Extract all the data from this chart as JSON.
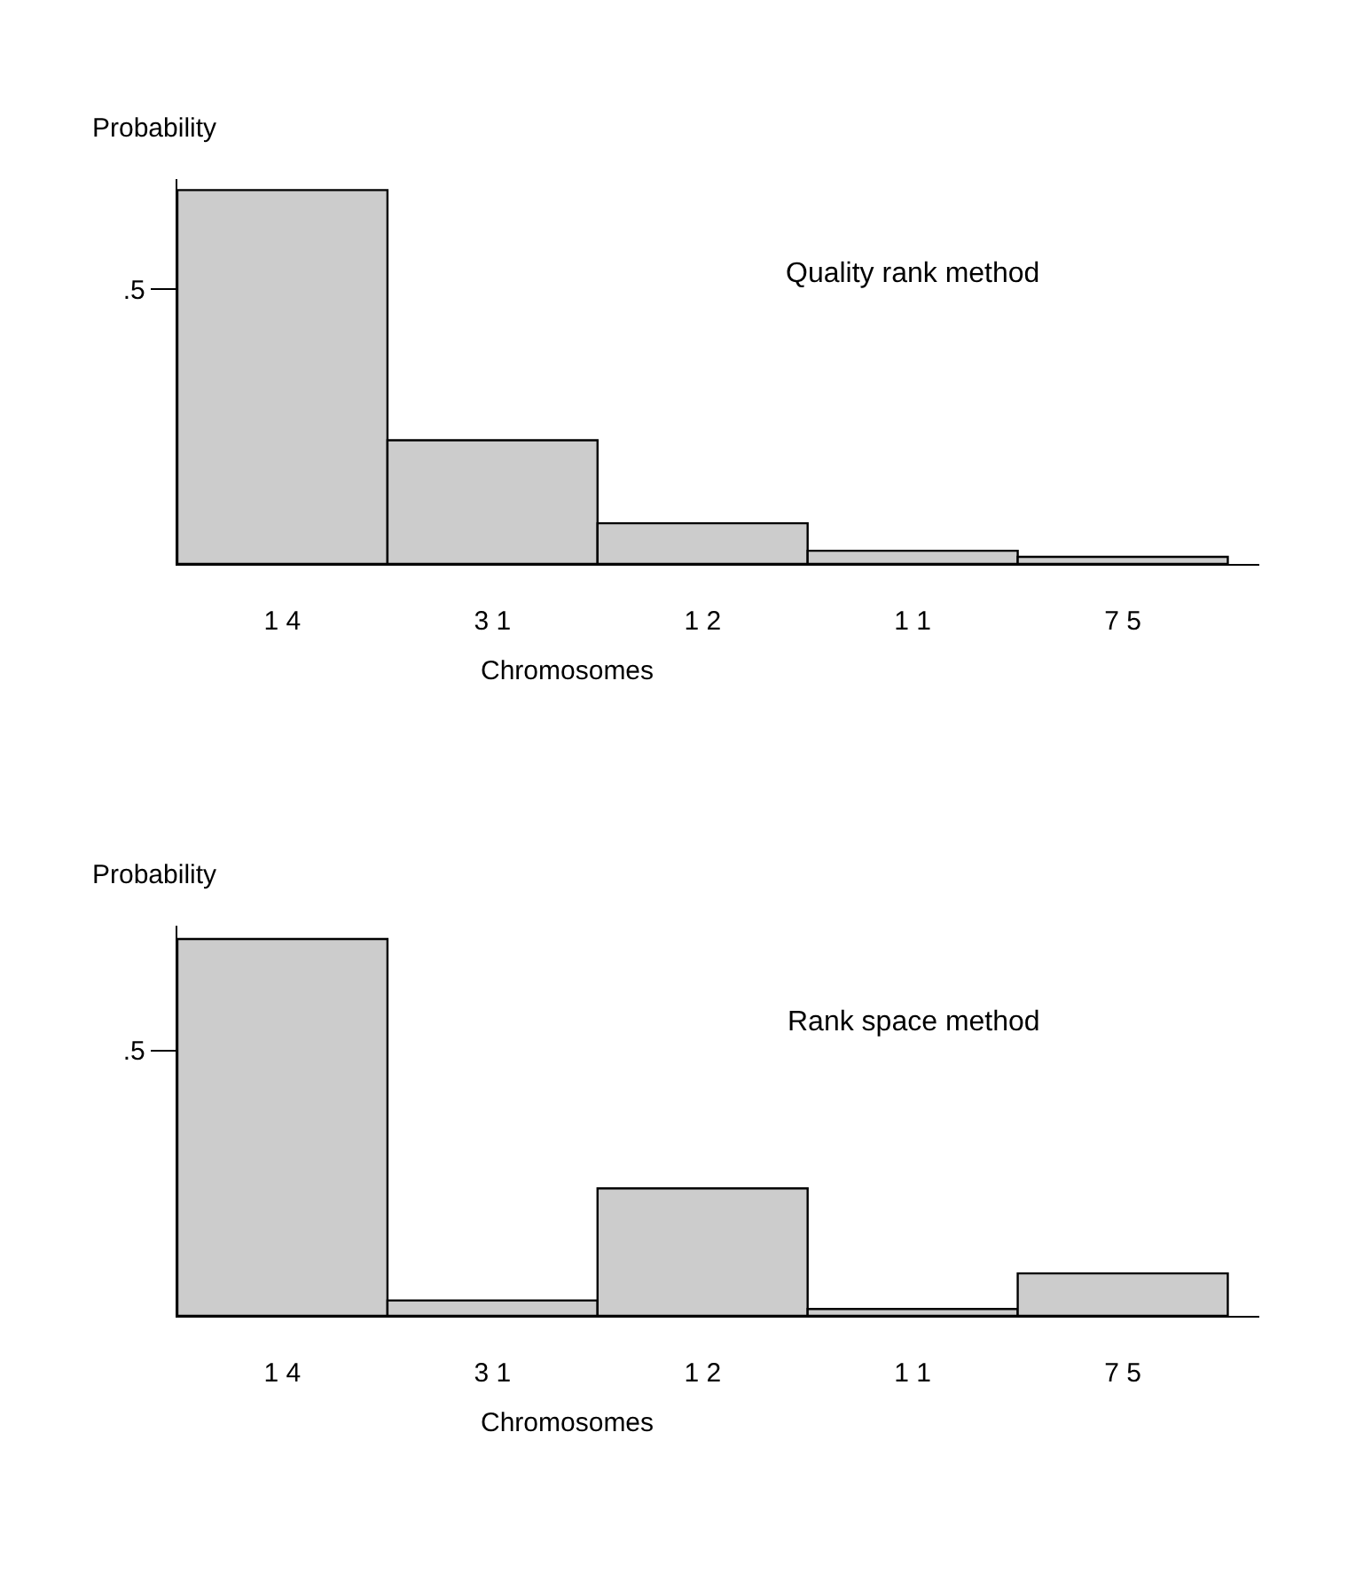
{
  "chart_data": [
    {
      "type": "bar",
      "title": "Quality rank method",
      "xlabel": "Chromosomes",
      "ylabel": "Probability",
      "categories": [
        "1 4",
        "3 1",
        "1 2",
        "1 1",
        "7 5"
      ],
      "values": [
        0.68,
        0.225,
        0.074,
        0.024,
        0.013
      ],
      "color": "#cccccc",
      "ylim": [
        0,
        0.7
      ],
      "yticks": [
        {
          "value": 0.5,
          "label": ".5"
        }
      ]
    },
    {
      "type": "bar",
      "title": "Rank space method",
      "xlabel": "Chromosomes",
      "ylabel": "Probability",
      "categories": [
        "1 4",
        "3 1",
        "1 2",
        "1 1",
        "7 5"
      ],
      "values": [
        0.71,
        0.029,
        0.24,
        0.013,
        0.08
      ],
      "color": "#cccccc",
      "ylim": [
        0,
        0.735
      ],
      "yticks": [
        {
          "value": 0.5,
          "label": ".5"
        }
      ]
    }
  ]
}
